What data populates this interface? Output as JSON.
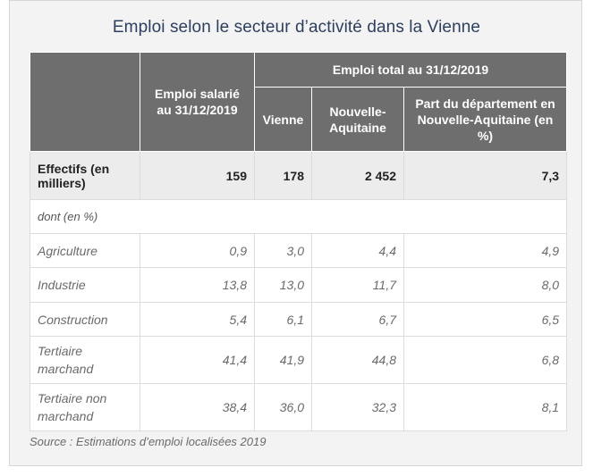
{
  "title": "Emploi selon le secteur d’activité dans la Vienne",
  "header": {
    "salarie": "Emploi salarié au 31/12/2019",
    "total_group": "Emploi total au 31/12/2019",
    "vienne": "Vienne",
    "nouvelle_aquitaine": "Nouvelle-Aquitaine",
    "part": "Part du département en Nouvelle-Aquitaine (en %)"
  },
  "effectifs": {
    "label": "Effectifs (en milliers)",
    "salarie": "159",
    "vienne": "178",
    "nouvelle_aquitaine": "2 452",
    "part": "7,3"
  },
  "dont_label": "dont (en %)",
  "rows": [
    {
      "label": "Agriculture",
      "salarie": "0,9",
      "vienne": "3,0",
      "nouvelle_aquitaine": "4,4",
      "part": "4,9"
    },
    {
      "label": "Industrie",
      "salarie": "13,8",
      "vienne": "13,0",
      "nouvelle_aquitaine": "11,7",
      "part": "8,0"
    },
    {
      "label": "Construction",
      "salarie": "5,4",
      "vienne": "6,1",
      "nouvelle_aquitaine": "6,7",
      "part": "6,5"
    },
    {
      "label": "Tertiaire marchand",
      "salarie": "41,4",
      "vienne": "41,9",
      "nouvelle_aquitaine": "44,8",
      "part": "6,8"
    },
    {
      "label": "Tertiaire non marchand",
      "salarie": "38,4",
      "vienne": "36,0",
      "nouvelle_aquitaine": "32,3",
      "part": "8,1"
    }
  ],
  "source": "Source : Estimations d’emploi localisées 2019"
}
